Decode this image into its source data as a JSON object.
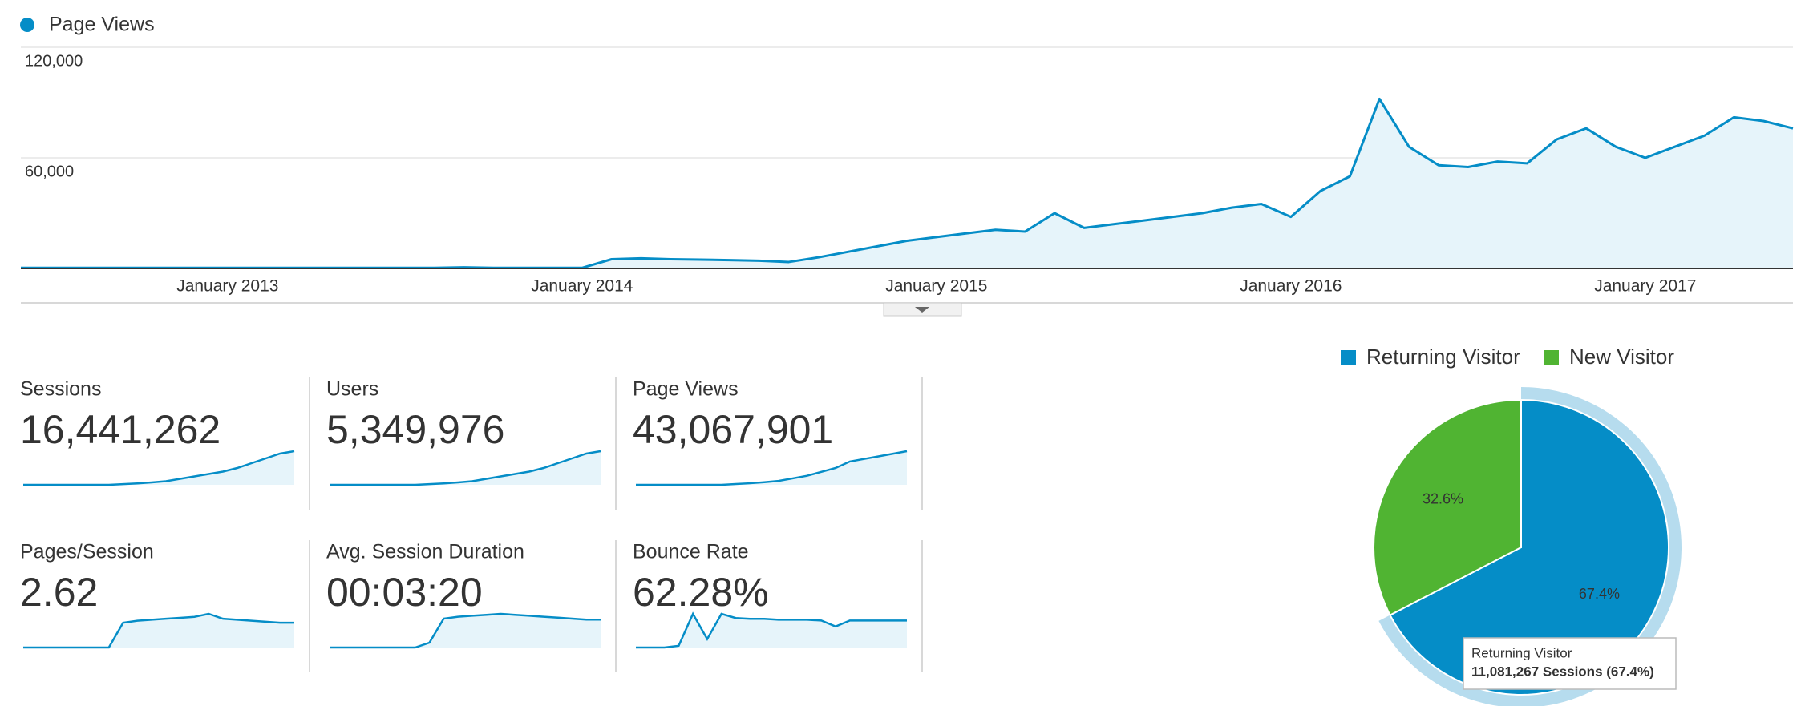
{
  "chart_data": [
    {
      "type": "line",
      "x": [
        "2012-06",
        "2012-07",
        "2012-08",
        "2012-09",
        "2012-10",
        "2012-11",
        "2012-12",
        "2013-01",
        "2013-02",
        "2013-03",
        "2013-04",
        "2013-05",
        "2013-06",
        "2013-07",
        "2013-08",
        "2013-09",
        "2013-10",
        "2013-11",
        "2013-12",
        "2014-01",
        "2014-02",
        "2014-03",
        "2014-04",
        "2014-05",
        "2014-06",
        "2014-07",
        "2014-08",
        "2014-09",
        "2014-10",
        "2014-11",
        "2014-12",
        "2015-01",
        "2015-02",
        "2015-03",
        "2015-04",
        "2015-05",
        "2015-06",
        "2015-07",
        "2015-08",
        "2015-09",
        "2015-10",
        "2015-11",
        "2015-12",
        "2016-01",
        "2016-02",
        "2016-03",
        "2016-04",
        "2016-05",
        "2016-06",
        "2016-07",
        "2016-08",
        "2016-09",
        "2016-10",
        "2016-11",
        "2016-12",
        "2017-01",
        "2017-02",
        "2017-03",
        "2017-04",
        "2017-05",
        "2017-06"
      ],
      "series": [
        {
          "name": "Page Views",
          "color": "#058dc7",
          "values": [
            300,
            300,
            300,
            300,
            300,
            300,
            300,
            300,
            300,
            300,
            300,
            300,
            300,
            300,
            300,
            600,
            300,
            300,
            300,
            300,
            5000,
            5500,
            5000,
            4800,
            4500,
            4200,
            3500,
            6000,
            9000,
            12000,
            15000,
            17000,
            19000,
            21000,
            20000,
            30000,
            22000,
            24000,
            26000,
            28000,
            30000,
            33000,
            35000,
            28000,
            42000,
            50000,
            92000,
            66000,
            56000,
            55000,
            58000,
            57000,
            70000,
            76000,
            66000,
            60000,
            66000,
            72000,
            82000,
            80000,
            76000
          ]
        }
      ],
      "ylim": [
        0,
        120000
      ],
      "yticks": [
        {
          "value": 60000,
          "label": "60,000"
        },
        {
          "value": 120000,
          "label": "120,000"
        }
      ],
      "xticks": [
        {
          "value": "2013-01",
          "label": "January 2013"
        },
        {
          "value": "2014-01",
          "label": "January 2014"
        },
        {
          "value": "2015-01",
          "label": "January 2015"
        },
        {
          "value": "2016-01",
          "label": "January 2016"
        },
        {
          "value": "2017-01",
          "label": "January 2017"
        }
      ],
      "grid": true
    },
    {
      "type": "pie",
      "categories": [
        "Returning Visitor",
        "New Visitor"
      ],
      "values": [
        67.4,
        32.6
      ],
      "value_labels": [
        "67.4%",
        "32.6%"
      ],
      "colors": [
        "#058dc7",
        "#50b432"
      ],
      "highlight_color": "#b6dcee"
    }
  ],
  "metrics": [
    {
      "label": "Sessions",
      "value": "16,441,262",
      "trend": [
        0,
        0,
        0,
        0,
        0,
        0,
        0,
        0.3,
        0.6,
        1,
        1.5,
        2.5,
        3.5,
        4.5,
        5.5,
        7,
        9,
        11,
        13,
        14
      ]
    },
    {
      "label": "Users",
      "value": "5,349,976",
      "trend": [
        0,
        0,
        0,
        0,
        0,
        0,
        0,
        0.3,
        0.6,
        1,
        1.5,
        2.5,
        3.5,
        4.5,
        5.5,
        7,
        9,
        11,
        13,
        14
      ]
    },
    {
      "label": "Page Views",
      "value": "43,067,901",
      "trend": [
        0,
        0,
        0,
        0,
        0,
        0,
        0,
        0.3,
        0.6,
        1,
        1.5,
        2.5,
        3.5,
        5,
        6.5,
        9,
        10,
        11,
        12,
        13
      ]
    },
    {
      "label": "Pages/Session",
      "value": "2.62",
      "trend": [
        0,
        0,
        0,
        0,
        0,
        0,
        0,
        2.5,
        2.7,
        2.8,
        2.9,
        3,
        3.1,
        3.4,
        2.9,
        2.8,
        2.7,
        2.6,
        2.5,
        2.5
      ]
    },
    {
      "label": "Avg. Session Duration",
      "value": "00:03:20",
      "trend": [
        0,
        0,
        0,
        0,
        0,
        0,
        0,
        0.5,
        3,
        3.2,
        3.3,
        3.4,
        3.5,
        3.4,
        3.3,
        3.2,
        3.1,
        3,
        2.9,
        2.9
      ]
    },
    {
      "label": "Bounce Rate",
      "value": "62.28%",
      "trend": [
        0,
        0,
        0,
        0.2,
        4,
        1,
        4,
        3.5,
        3.4,
        3.4,
        3.3,
        3.3,
        3.3,
        3.2,
        2.5,
        3.2,
        3.2,
        3.2,
        3.2,
        3.2
      ]
    }
  ],
  "tooltip": {
    "title": "Returning Visitor",
    "text": "11,081,267 Sessions (67.4%)"
  }
}
